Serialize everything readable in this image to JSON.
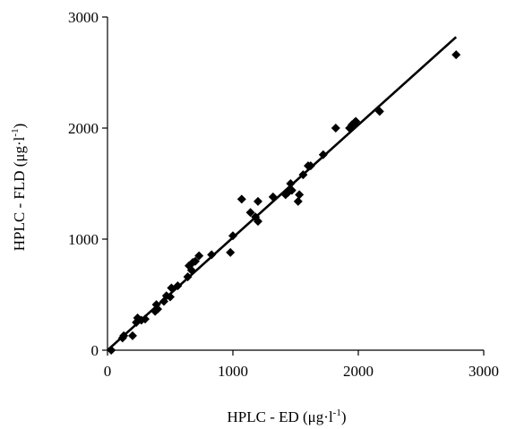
{
  "chart_data": {
    "type": "scatter",
    "title": "",
    "xlabel": {
      "base": "HPLC - ED (μg·l",
      "sup": "-1",
      "close": ")"
    },
    "ylabel": {
      "base": "HPLC - FLD (μg·l",
      "sup": "-1",
      "close": ")"
    },
    "xlim": [
      0,
      3000
    ],
    "ylim": [
      0,
      3000
    ],
    "x_ticks": [
      0,
      1000,
      2000,
      3000
    ],
    "y_ticks": [
      0,
      1000,
      2000,
      3000
    ],
    "x_tick_labels": [
      "0",
      "1000",
      "2000",
      "3000"
    ],
    "y_tick_labels": [
      "0",
      "1000",
      "2000",
      "3000"
    ],
    "grid": false,
    "legend": "none",
    "marker": "diamond",
    "marker_color": "#000000",
    "trendline": {
      "x": [
        0,
        2780
      ],
      "y": [
        0,
        2820
      ],
      "color": "#000000"
    },
    "points": [
      [
        30,
        0
      ],
      [
        120,
        110
      ],
      [
        130,
        130
      ],
      [
        200,
        130
      ],
      [
        230,
        250
      ],
      [
        240,
        290
      ],
      [
        270,
        270
      ],
      [
        300,
        280
      ],
      [
        380,
        350
      ],
      [
        390,
        410
      ],
      [
        400,
        370
      ],
      [
        450,
        440
      ],
      [
        470,
        490
      ],
      [
        500,
        480
      ],
      [
        510,
        560
      ],
      [
        560,
        580
      ],
      [
        640,
        660
      ],
      [
        650,
        760
      ],
      [
        670,
        720
      ],
      [
        680,
        790
      ],
      [
        700,
        800
      ],
      [
        730,
        850
      ],
      [
        830,
        860
      ],
      [
        980,
        880
      ],
      [
        1000,
        1030
      ],
      [
        1070,
        1360
      ],
      [
        1140,
        1240
      ],
      [
        1180,
        1200
      ],
      [
        1200,
        1340
      ],
      [
        1200,
        1160
      ],
      [
        1320,
        1380
      ],
      [
        1420,
        1400
      ],
      [
        1440,
        1420
      ],
      [
        1460,
        1500
      ],
      [
        1470,
        1440
      ],
      [
        1520,
        1340
      ],
      [
        1530,
        1400
      ],
      [
        1560,
        1580
      ],
      [
        1600,
        1660
      ],
      [
        1620,
        1660
      ],
      [
        1720,
        1760
      ],
      [
        1820,
        2000
      ],
      [
        1930,
        2000
      ],
      [
        1950,
        2030
      ],
      [
        1970,
        2050
      ],
      [
        1980,
        2060
      ],
      [
        2170,
        2150
      ],
      [
        2780,
        2660
      ]
    ]
  }
}
